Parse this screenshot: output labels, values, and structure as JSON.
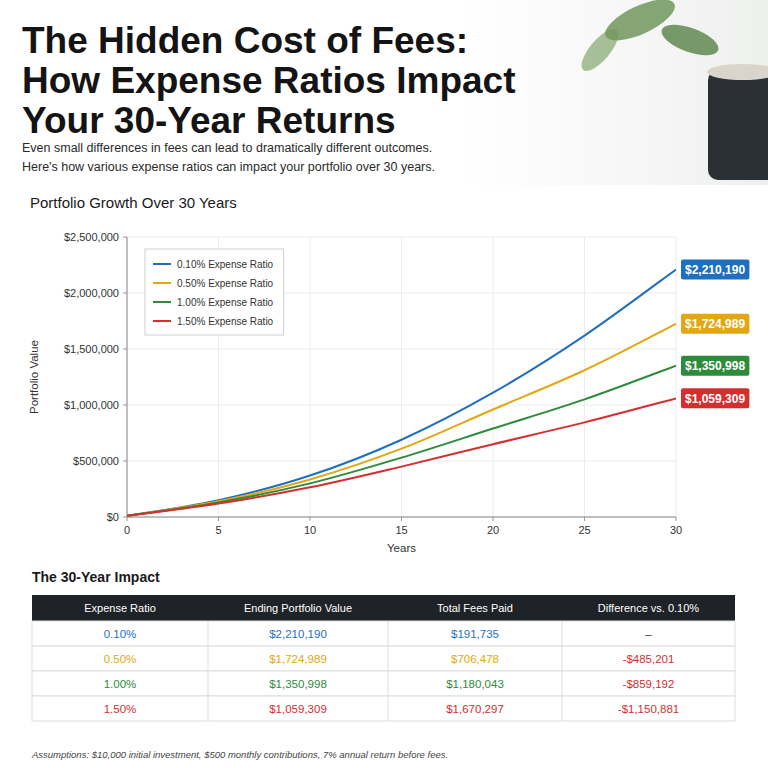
{
  "header": {
    "title": [
      "The Hidden Cost of Fees:",
      "How Expense Ratios Impact",
      "Your 30-Year Returns"
    ],
    "subtitle": [
      "Even small differences in fees can lead to dramatically different outcomes.",
      "Here's how various expense ratios can impact your portfolio over 30 years."
    ]
  },
  "chart_data": {
    "type": "line",
    "title": "Portfolio Growth Over 30 Years",
    "x_label": "Years",
    "y_label": "Portfolio Value",
    "x": [
      0,
      5,
      10,
      15,
      20,
      25,
      30
    ],
    "xlim": [
      0,
      30
    ],
    "xticks": [
      0,
      5,
      10,
      15,
      20,
      25,
      30
    ],
    "ylim": [
      0,
      2500000
    ],
    "yticks": [
      {
        "value": 0,
        "label": "$0"
      },
      {
        "value": 500000,
        "label": "$500,000"
      },
      {
        "value": 1000000,
        "label": "$1,000,000"
      },
      {
        "value": 1500000,
        "label": "$1,500,000"
      },
      {
        "value": 2000000,
        "label": "$2,000,000"
      },
      {
        "value": 2500000,
        "label": "$2,500,000"
      }
    ],
    "grid": true,
    "legend": "top-left",
    "data_labels": true,
    "series": [
      {
        "name": "0.10% Expense Ratio",
        "color": "#1f6fc0",
        "values": [
          10000,
          150000,
          370000,
          690000,
          1110000,
          1620000,
          2210190
        ],
        "value_labels": [
          null,
          null,
          null,
          null,
          null,
          null,
          "$2,210,190"
        ]
      },
      {
        "name": "0.50% Expense Ratio",
        "color": "#e3a614",
        "values": [
          10000,
          140000,
          335000,
          610000,
          960000,
          1310000,
          1724989
        ],
        "value_labels": [
          null,
          null,
          null,
          null,
          null,
          null,
          "$1,724,989"
        ]
      },
      {
        "name": "1.00% Expense Ratio",
        "color": "#2e8b3a",
        "values": [
          10000,
          130000,
          300000,
          530000,
          790000,
          1050000,
          1350998
        ],
        "value_labels": [
          null,
          null,
          null,
          null,
          null,
          null,
          "$1,350,998"
        ]
      },
      {
        "name": "1.50% Expense Ratio",
        "color": "#d42f2f",
        "values": [
          10000,
          120000,
          265000,
          450000,
          650000,
          845000,
          1059309
        ],
        "value_labels": [
          null,
          null,
          null,
          null,
          null,
          null,
          "$1,059,309"
        ]
      }
    ]
  },
  "table": {
    "title": "The 30-Year Impact",
    "columns": [
      "Expense Ratio",
      "Ending Portfolio Value",
      "Total Fees Paid",
      "Difference vs. 0.10%"
    ],
    "rows": [
      [
        "0.10%",
        "$2,210,190",
        "$191,735",
        "–"
      ],
      [
        "0.50%",
        "$1,724,989",
        "$706,478",
        "-$485,201"
      ],
      [
        "1.00%",
        "$1,350,998",
        "$1,180,043",
        "-$859,192"
      ],
      [
        "1.50%",
        "$1,059,309",
        "$1,670,297",
        "-$1,150,881"
      ]
    ]
  },
  "footnote": "Assumptions: $10,000 initial investment, $500 monthly contributions, 7% annual return before fees."
}
